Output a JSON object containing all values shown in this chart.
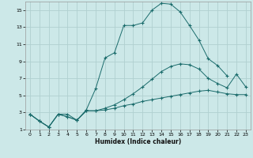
{
  "xlabel": "Humidex (Indice chaleur)",
  "bg_color": "#cce8e8",
  "grid_color": "#b0d0d0",
  "line_color": "#1a6b6b",
  "xlim": [
    -0.5,
    23.5
  ],
  "ylim": [
    1,
    16
  ],
  "xticks": [
    0,
    1,
    2,
    3,
    4,
    5,
    6,
    7,
    8,
    9,
    10,
    11,
    12,
    13,
    14,
    15,
    16,
    17,
    18,
    19,
    20,
    21,
    22,
    23
  ],
  "yticks": [
    1,
    3,
    5,
    7,
    9,
    11,
    13,
    15
  ],
  "series": [
    {
      "x": [
        0,
        1,
        2,
        3,
        4,
        5,
        6,
        7,
        8,
        9,
        10,
        11,
        12,
        13,
        14,
        15,
        16,
        17,
        18,
        19,
        20,
        21
      ],
      "y": [
        2.8,
        2.0,
        1.3,
        2.8,
        2.8,
        2.1,
        3.3,
        5.8,
        9.4,
        10.0,
        13.2,
        13.2,
        13.5,
        15.0,
        15.8,
        15.7,
        14.8,
        13.2,
        11.5,
        9.3,
        8.5,
        7.3
      ]
    },
    {
      "x": [
        0,
        1,
        2,
        3,
        4,
        5,
        6,
        7,
        8,
        9,
        10,
        11,
        12,
        13,
        14,
        15,
        16,
        17,
        18,
        19,
        20,
        21,
        22,
        23
      ],
      "y": [
        2.8,
        2.0,
        1.3,
        2.8,
        2.5,
        2.1,
        3.2,
        3.2,
        3.3,
        3.5,
        3.8,
        4.0,
        4.3,
        4.5,
        4.7,
        4.9,
        5.1,
        5.3,
        5.5,
        5.6,
        5.4,
        5.2,
        5.1,
        5.1
      ]
    },
    {
      "x": [
        0,
        1,
        2,
        3,
        4,
        5,
        6,
        7,
        8,
        9,
        10,
        11,
        12,
        13,
        14,
        15,
        16,
        17,
        18,
        19,
        20,
        21,
        22,
        23
      ],
      "y": [
        2.8,
        2.0,
        1.3,
        2.8,
        2.5,
        2.1,
        3.2,
        3.2,
        3.5,
        3.9,
        4.5,
        5.2,
        6.0,
        6.9,
        7.8,
        8.4,
        8.7,
        8.6,
        8.1,
        7.0,
        6.4,
        5.9,
        7.5,
        6.0
      ]
    }
  ]
}
